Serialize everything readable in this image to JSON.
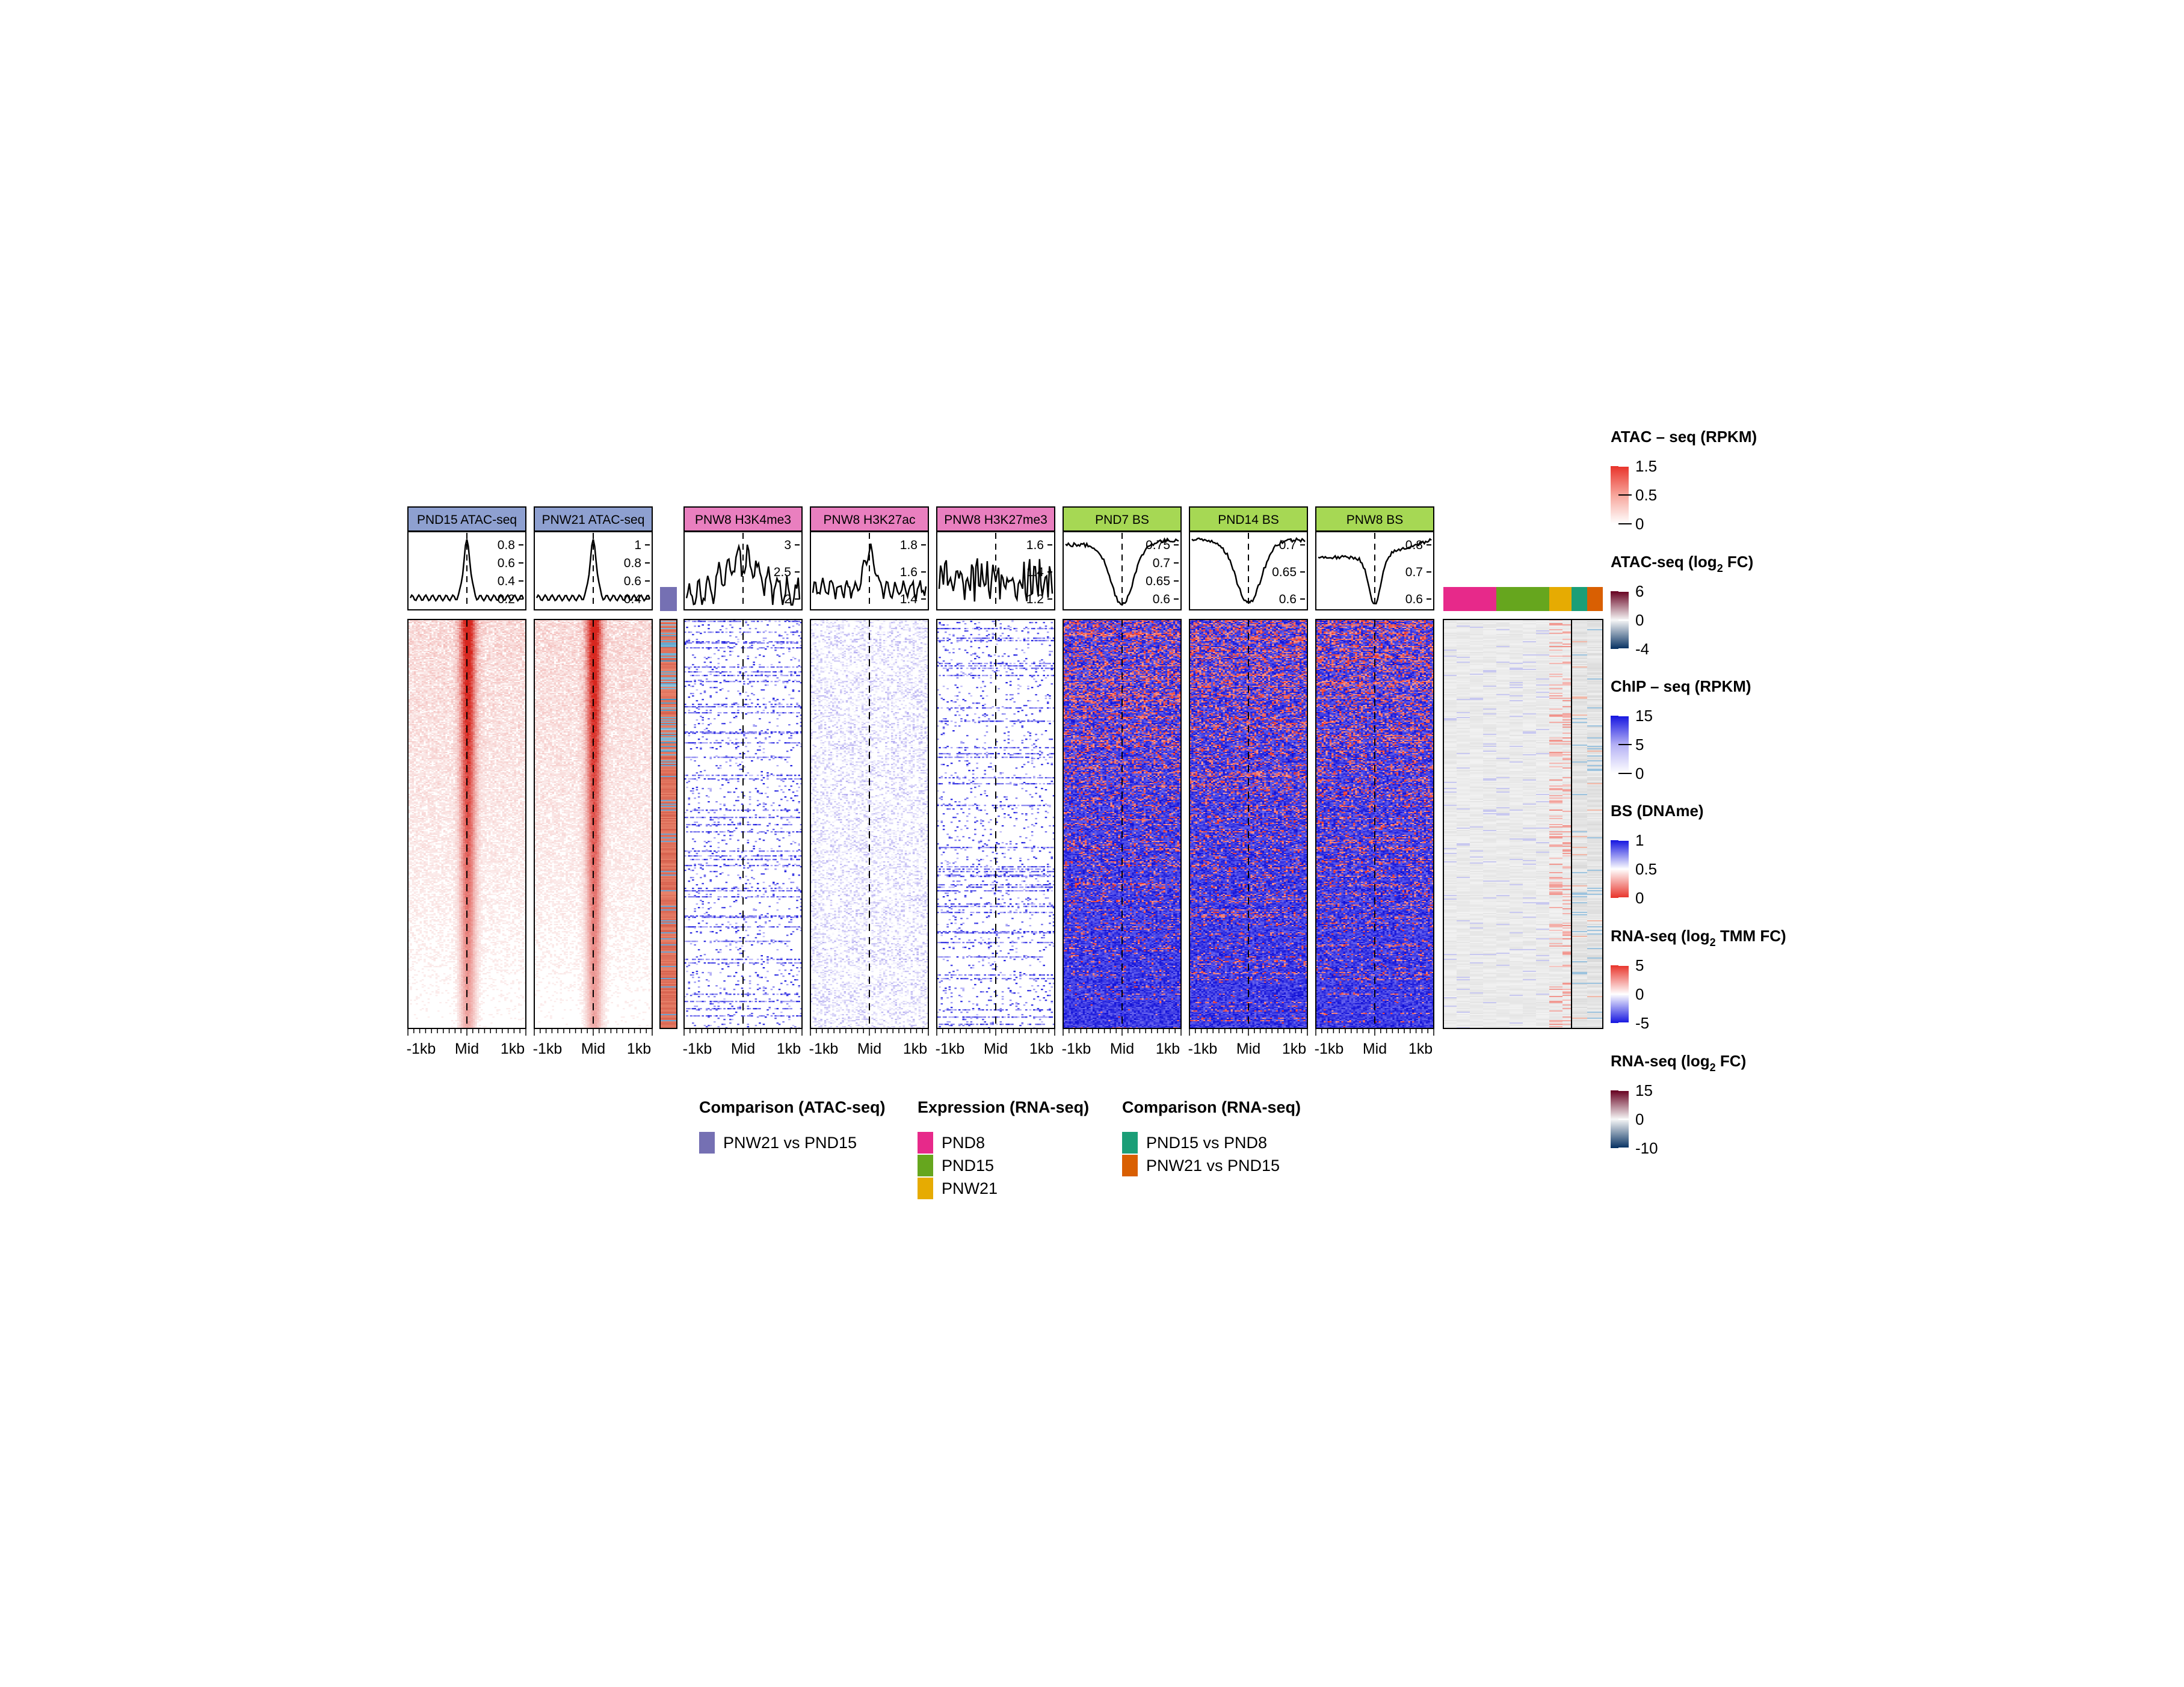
{
  "panels": [
    {
      "title": "PND15 ATAC-seq",
      "header_color": "#8EA0D0",
      "heat": "atac",
      "profile": "peak",
      "yticks": [
        "0.8",
        "0.6",
        "0.4",
        "0.2"
      ],
      "xticks": [
        "-1kb",
        "Mid",
        "1kb"
      ]
    },
    {
      "title": "PNW21 ATAC-seq",
      "header_color": "#8EA0D0",
      "heat": "atac",
      "profile": "peak",
      "yticks": [
        "1",
        "0.8",
        "0.6",
        "0.4"
      ],
      "xticks": [
        "-1kb",
        "Mid",
        "1kb"
      ]
    },
    {
      "title": "PNW8 H3K4me3",
      "header_color": "#E97FBF",
      "heat": "chip_sparse",
      "profile": "noisy",
      "yticks": [
        "3",
        "2.5",
        "2"
      ],
      "xticks": [
        "-1kb",
        "Mid",
        "1kb"
      ]
    },
    {
      "title": "PNW8 H3K27ac",
      "header_color": "#E97FBF",
      "heat": "chip_light",
      "profile": "bump",
      "yticks": [
        "1.8",
        "1.6",
        "1.4"
      ],
      "xticks": [
        "-1kb",
        "Mid",
        "1kb"
      ]
    },
    {
      "title": "PNW8 H3K27me3",
      "header_color": "#E97FBF",
      "heat": "chip_sparse",
      "profile": "noisy2",
      "yticks": [
        "1.6",
        "1.4",
        "1.2"
      ],
      "xticks": [
        "-1kb",
        "Mid",
        "1kb"
      ]
    },
    {
      "title": "PND7 BS",
      "header_color": "#A6D854",
      "heat": "bs",
      "profile": "valley",
      "yticks": [
        "0.75",
        "0.7",
        "0.65",
        "0.6"
      ],
      "xticks": [
        "-1kb",
        "Mid",
        "1kb"
      ]
    },
    {
      "title": "PND14 BS",
      "header_color": "#A6D854",
      "heat": "bs",
      "profile": "valley2",
      "yticks": [
        "0.7",
        "0.65",
        "0.6"
      ],
      "xticks": [
        "-1kb",
        "Mid",
        "1kb"
      ]
    },
    {
      "title": "PNW8 BS",
      "header_color": "#A6D854",
      "heat": "bs",
      "profile": "valley3",
      "yticks": [
        "0.8",
        "0.7",
        "0.6"
      ],
      "xticks": [
        "-1kb",
        "Mid",
        "1kb"
      ]
    }
  ],
  "annotation_strips": {
    "atac_comparison_color": "#7570B3",
    "expression_colors": [
      "#E7298A",
      "#66A61E",
      "#E6AB02"
    ],
    "rna_comparison_colors": [
      "#1B9E77",
      "#D95F02"
    ]
  },
  "bottom_legends": [
    {
      "title": "Comparison (ATAC-seq)",
      "items": [
        {
          "label": "PNW21 vs PND15",
          "color": "#7570B3"
        }
      ]
    },
    {
      "title": "Expression (RNA-seq)",
      "items": [
        {
          "label": "PND8",
          "color": "#E7298A"
        },
        {
          "label": "PND15",
          "color": "#66A61E"
        },
        {
          "label": "PNW21",
          "color": "#E6AB02"
        }
      ]
    },
    {
      "title": "Comparison (RNA-seq)",
      "items": [
        {
          "label": "PND15 vs PND8",
          "color": "#1B9E77"
        },
        {
          "label": "PNW21 vs PND15",
          "color": "#D95F02"
        }
      ]
    }
  ],
  "color_legends": [
    {
      "title": "ATAC – seq (RPKM)",
      "ticks": [
        "1.5",
        "0.5",
        "0"
      ],
      "colors": [
        "#E8332A",
        "#F7A59B",
        "#FFFFFF"
      ]
    },
    {
      "title_main": "ATAC-seq (log",
      "title_sub": "2",
      "title_tail": " FC)",
      "ticks": [
        "6",
        "0",
        "-4"
      ],
      "colors": [
        "#67001F",
        "#F7F7F7",
        "#053061"
      ]
    },
    {
      "title": "ChIP – seq (RPKM)",
      "ticks": [
        "15",
        "5",
        "0"
      ],
      "colors": [
        "#1515E0",
        "#B4B0F5",
        "#FFFFFF"
      ]
    },
    {
      "title": "BS (DNAme)",
      "ticks": [
        "1",
        "0.5",
        "0"
      ],
      "colors": [
        "#1515E0",
        "#FFFFFF",
        "#E8332A"
      ]
    },
    {
      "title_main": "RNA-seq (log",
      "title_sub": "2",
      "title_tail": " TMM FC)",
      "ticks": [
        "5",
        "0",
        "-5"
      ],
      "colors": [
        "#E8332A",
        "#FFFFFF",
        "#1515E0"
      ]
    },
    {
      "title_main": "RNA-seq (log",
      "title_sub": "2",
      "title_tail": " FC)",
      "ticks": [
        "15",
        "0",
        "-10"
      ],
      "colors": [
        "#67001F",
        "#F7F7F7",
        "#053061"
      ]
    }
  ]
}
